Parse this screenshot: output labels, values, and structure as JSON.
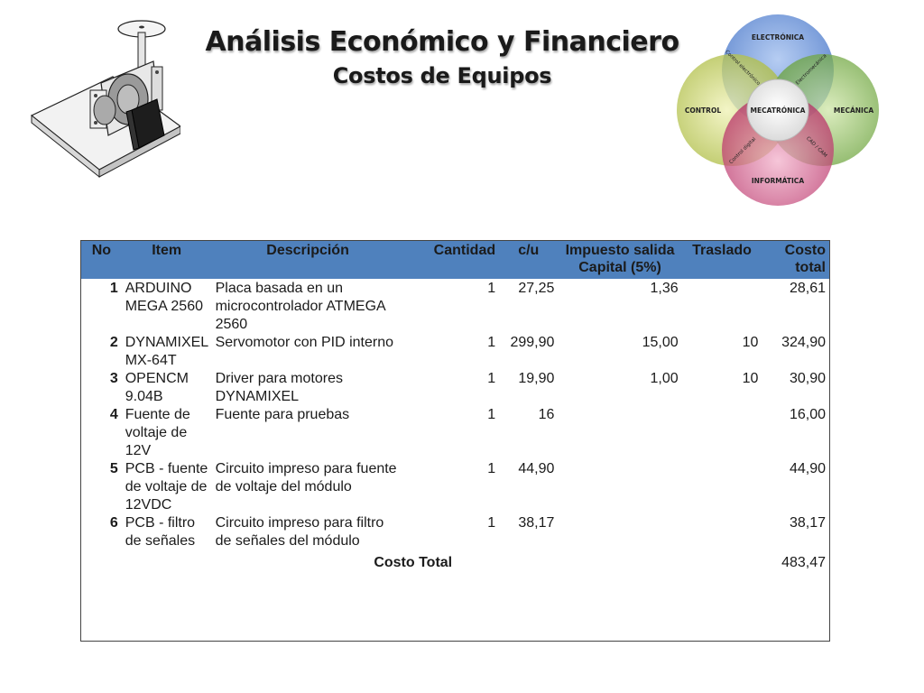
{
  "title": "Análisis Económico y Financiero",
  "subtitle": "Costos de Equipos",
  "venn": {
    "center": "MECATRÓNICA",
    "top": "ELECTRÓNICA",
    "left": "CONTROL",
    "right": "MECÁNICA",
    "bottom": "INFORMÁTICA",
    "overlap_tl": "Control electrónico",
    "overlap_tr": "Electromecánica",
    "overlap_bl": "Control digital",
    "overlap_br": "CAD / CAM"
  },
  "table": {
    "headers": {
      "no": "No",
      "item": "Item",
      "desc": "Descripción",
      "cant": "Cantidad",
      "cu": "c/u",
      "imp": "Impuesto salida Capital (5%)",
      "tras": "Traslado",
      "cost": "Costo total"
    },
    "rows": [
      {
        "no": "1",
        "item": "ARDUINO MEGA 2560",
        "desc": "Placa basada en un microcontrolador ATMEGA 2560",
        "cant": "1",
        "cu": "27,25",
        "imp": "1,36",
        "tras": "",
        "cost": "28,61"
      },
      {
        "no": "2",
        "item": "DYNAMIXEL MX-64T",
        "desc": "Servomotor con PID interno",
        "cant": "1",
        "cu": "299,90",
        "imp": "15,00",
        "tras": "10",
        "cost": "324,90"
      },
      {
        "no": "3",
        "item": "OPENCM 9.04B",
        "desc": "Driver para motores DYNAMIXEL",
        "cant": "1",
        "cu": "19,90",
        "imp": "1,00",
        "tras": "10",
        "cost": "30,90"
      },
      {
        "no": "4",
        "item": "Fuente de voltaje de 12V",
        "desc": "Fuente para pruebas",
        "cant": "1",
        "cu": "16",
        "imp": "",
        "tras": "",
        "cost": "16,00"
      },
      {
        "no": "5",
        "item": "PCB - fuente de voltaje de 12VDC",
        "desc": "Circuito impreso para fuente de voltaje del módulo",
        "cant": "1",
        "cu": "44,90",
        "imp": "",
        "tras": "",
        "cost": "44,90"
      },
      {
        "no": "6",
        "item": "PCB - filtro de señales",
        "desc": "Circuito impreso para filtro de señales del módulo",
        "cant": "1",
        "cu": "38,17",
        "imp": "",
        "tras": "",
        "cost": "38,17"
      }
    ],
    "total_label": "Costo Total",
    "total_value": "483,47"
  },
  "colors": {
    "header_blue": "#4f81bd",
    "venn_top": "#4f7fd1",
    "venn_left": "#b6c54a",
    "venn_right": "#6fa83a",
    "venn_bottom": "#c0306a"
  }
}
